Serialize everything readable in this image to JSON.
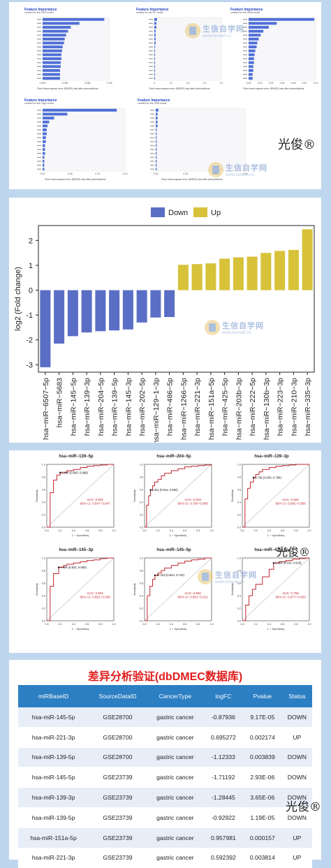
{
  "watermark": {
    "brand": "生信自学网",
    "url": "www.biowolf.cn",
    "signature": "光俊®"
  },
  "feature_importance": {
    "title": "Feature Importance",
    "xlabel": "Root mean square error (RMSE) loss after permutations",
    "panels": [
      {
        "subtitle": "created for the SVM model",
        "xticks": [
          "0.094",
          "0.096",
          "0.098",
          "0.100"
        ]
      },
      {
        "subtitle": "created for the RF model",
        "xticks": [
          "0",
          "0.1",
          "0.2",
          "0.3",
          "0.4"
        ]
      },
      {
        "subtitle": "created for the GBM model",
        "xticks": [
          "0.00",
          "0.02",
          "0.04",
          "0.06",
          "0.08",
          "0.10",
          "0.12"
        ]
      },
      {
        "subtitle": "created for the Logit model",
        "xticks": [
          "0.00",
          "0.05",
          "0.10",
          "0.15"
        ]
      },
      {
        "subtitle": "created for the XGB model",
        "xticks": [
          "0.00",
          "0.05",
          "0.10",
          "0.15"
        ]
      }
    ]
  },
  "chart_data": [
    {
      "type": "bar",
      "title": "",
      "xlabel": "",
      "ylabel": "log2 (Fold change)",
      "ylim": [
        -3.3,
        2.6
      ],
      "yticks": [
        -3,
        -2,
        -1,
        0,
        1,
        2
      ],
      "legend": {
        "position": "top-center",
        "items": [
          {
            "label": "Down",
            "color": "#5a6ec5"
          },
          {
            "label": "Up",
            "color": "#d7c23a"
          }
        ]
      },
      "categories": [
        "hsa−miR−6507−5p",
        "hsa−miR−5683",
        "hsa−miR−145−5p",
        "hsa−miR−139−3p",
        "hsa−miR−204−5p",
        "hsa−miR−139−5p",
        "hsa−miR−145−3p",
        "hsa−miR−202−5p",
        "hsa−miR−129−1−3p",
        "hsa−miR−486−5p",
        "hsa−miR−1266−5p",
        "hsa−miR−221−3p",
        "hsa−miR−151a−5p",
        "hsa−miR−425−5p",
        "hsa−miR−203b−3p",
        "hsa−miR−222−5p",
        "hsa−miR−130b−3p",
        "hsa−miR−223−3p",
        "hsa−miR−210−3p",
        "hsa−miR−335−3p"
      ],
      "values": [
        -3.1,
        -2.15,
        -1.85,
        -1.7,
        -1.65,
        -1.62,
        -1.58,
        -1.3,
        -1.1,
        -1.08,
        1.02,
        1.05,
        1.08,
        1.27,
        1.32,
        1.35,
        1.5,
        1.58,
        1.62,
        2.45
      ],
      "groups": [
        "Down",
        "Down",
        "Down",
        "Down",
        "Down",
        "Down",
        "Down",
        "Down",
        "Down",
        "Down",
        "Up",
        "Up",
        "Up",
        "Up",
        "Up",
        "Up",
        "Up",
        "Up",
        "Up",
        "Up"
      ]
    },
    {
      "type": "line",
      "title": "hsa−miR−139−5p",
      "xlabel": "1 − Specificity",
      "ylabel": "Sensitivity",
      "xlim": [
        0,
        1
      ],
      "ylim": [
        0,
        1
      ],
      "cutoff": "5.990 (0.800, 0.868)",
      "auc": "AUC: 0.901",
      "ci": "95% CI: 0.847−0.947",
      "x": [
        0.0,
        0.05,
        0.1,
        0.15,
        0.2,
        0.25,
        0.3,
        0.4,
        0.5,
        0.6,
        0.7,
        0.8,
        0.9,
        1.0
      ],
      "y": [
        0.0,
        0.55,
        0.75,
        0.83,
        0.868,
        0.87,
        0.9,
        0.92,
        0.95,
        0.97,
        0.98,
        0.99,
        1.0,
        1.0
      ]
    },
    {
      "type": "line",
      "title": "hsa−miR−204−5p",
      "xlabel": "1 − Specificity",
      "ylabel": "Sensitivity",
      "xlim": [
        0,
        1
      ],
      "ylim": [
        0,
        1
      ],
      "cutoff": "1.911 (0.911, 0.592)",
      "auc": "AUC: 0.818",
      "ci": "95% CI: 0.760−0.868",
      "x": [
        0.0,
        0.03,
        0.06,
        0.089,
        0.12,
        0.15,
        0.2,
        0.25,
        0.3,
        0.4,
        0.5,
        0.6,
        0.7,
        0.8,
        0.9,
        1.0
      ],
      "y": [
        0.0,
        0.35,
        0.5,
        0.592,
        0.66,
        0.72,
        0.76,
        0.82,
        0.86,
        0.9,
        0.93,
        0.96,
        0.97,
        0.98,
        0.99,
        1.0
      ]
    },
    {
      "type": "line",
      "title": "hsa−miR−139−3p",
      "xlabel": "1 − Specificity",
      "ylabel": "Sensitivity",
      "xlim": [
        0,
        1
      ],
      "ylim": [
        0,
        1
      ],
      "cutoff": "3.748 (0.833, 0.789)",
      "auc": "AUC: 0.922",
      "ci": "95% CI: 0.882−0.956",
      "x": [
        0.0,
        0.04,
        0.08,
        0.12,
        0.167,
        0.2,
        0.25,
        0.3,
        0.4,
        0.5,
        0.6,
        0.7,
        0.8,
        0.9,
        1.0
      ],
      "y": [
        0.0,
        0.45,
        0.62,
        0.72,
        0.789,
        0.84,
        0.88,
        0.92,
        0.95,
        0.97,
        0.98,
        0.99,
        1.0,
        1.0,
        1.0
      ]
    },
    {
      "type": "line",
      "title": "hsa−miR−145−3p",
      "xlabel": "1 − Specificity",
      "ylabel": "Sensitivity",
      "xlim": [
        0,
        1
      ],
      "ylim": [
        0,
        1
      ],
      "cutoff": "7.066 (0.822, 0.850)",
      "auc": "AUC: 0.901",
      "ci": "95% CI: 0.861−0.938",
      "x": [
        0.0,
        0.05,
        0.1,
        0.178,
        0.25,
        0.3,
        0.4,
        0.5,
        0.6,
        0.7,
        0.8,
        0.9,
        1.0
      ],
      "y": [
        0.0,
        0.55,
        0.75,
        0.85,
        0.88,
        0.9,
        0.92,
        0.94,
        0.96,
        0.97,
        0.99,
        1.0,
        1.0
      ]
    },
    {
      "type": "line",
      "title": "hsa−miR−145−5p",
      "xlabel": "1 − Specificity",
      "ylabel": "Sensitivity",
      "xlim": [
        0,
        1
      ],
      "ylim": [
        0,
        1
      ],
      "cutoff": "12.103 (0.844, 0.724)",
      "auc": "AUC: 0.860",
      "ci": "95% CI: 0.801−0.912",
      "x": [
        0.0,
        0.04,
        0.08,
        0.12,
        0.156,
        0.2,
        0.25,
        0.3,
        0.4,
        0.5,
        0.6,
        0.7,
        0.8,
        0.9,
        1.0
      ],
      "y": [
        0.0,
        0.4,
        0.55,
        0.66,
        0.724,
        0.76,
        0.8,
        0.84,
        0.88,
        0.92,
        0.95,
        0.97,
        0.98,
        1.0,
        1.0
      ]
    },
    {
      "type": "line",
      "title": "hsa−miR−425−5p",
      "xlabel": "1 − Specificity",
      "ylabel": "Sensitivity",
      "xlim": [
        0,
        1
      ],
      "ylim": [
        0,
        1
      ],
      "cutoff": "3.969 (0.533, 0.919)",
      "auc": "AUC: 0.756",
      "ci": "95% CI: 0.677−0.833",
      "x": [
        0.0,
        0.05,
        0.1,
        0.15,
        0.2,
        0.3,
        0.4,
        0.467,
        0.55,
        0.65,
        0.75,
        0.85,
        0.95,
        1.0
      ],
      "y": [
        0.0,
        0.25,
        0.4,
        0.5,
        0.58,
        0.7,
        0.82,
        0.919,
        0.94,
        0.96,
        0.98,
        0.99,
        1.0,
        1.0
      ]
    }
  ],
  "validation_table": {
    "title": "差异分析验证(dbDMEC数据库)",
    "columns": [
      "miRBaseID",
      "SourceDataID",
      "CancerType",
      "logFC",
      "Pvalue",
      "Status"
    ],
    "rows": [
      [
        "hsa-miR-145-5p",
        "GSE28700",
        "gastric cancer",
        "-0.87936",
        "9.17E-05",
        "DOWN"
      ],
      [
        "hsa-miR-221-3p",
        "GSE28700",
        "gastric cancer",
        "0.695272",
        "0.002174",
        "UP"
      ],
      [
        "hsa-miR-139-5p",
        "GSE28700",
        "gastric cancer",
        "-1.12333",
        "0.003839",
        "DOWN"
      ],
      [
        "hsa-miR-145-5p",
        "GSE23739",
        "gastric cancer",
        "-1.71192",
        "2.93E-06",
        "DOWN"
      ],
      [
        "hsa-miR-139-3p",
        "GSE23739",
        "gastric cancer",
        "-1.28445",
        "3.65E-06",
        "DOWN"
      ],
      [
        "hsa-miR-139-5p",
        "GSE23739",
        "gastric cancer",
        "-0.92922",
        "1.19E-05",
        "DOWN"
      ],
      [
        "hsa-miR-151a-5p",
        "GSE23739",
        "gastric cancer",
        "0.957981",
        "0.000157",
        "UP"
      ],
      [
        "hsa-miR-221-3p",
        "GSE23739",
        "gastric cancer",
        "0.592392",
        "0.003814",
        "UP"
      ]
    ]
  },
  "colors": {
    "background": "#bfd7ee",
    "down": "#5a6ec5",
    "up": "#d7c23a",
    "fi_bar": "#4f6fd6",
    "roc_line": "#c0272d",
    "header": "#2d7fc3",
    "table_title": "#e11b1b"
  }
}
